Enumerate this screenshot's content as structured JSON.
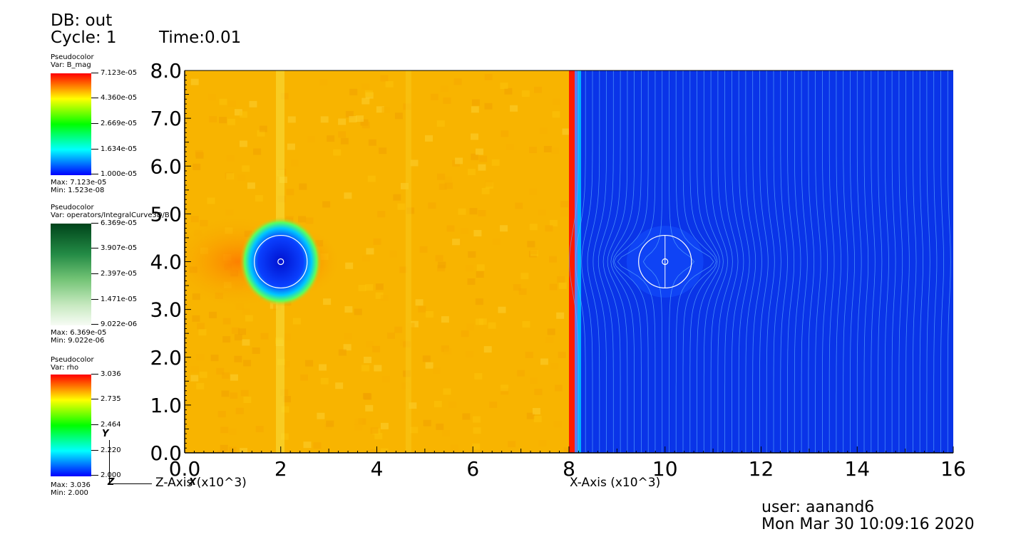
{
  "header": {
    "db_label": "DB: out",
    "cycle_label": "Cycle: 1",
    "time_label": "Time:0.01"
  },
  "legends": [
    {
      "plot": "Pseudocolor",
      "var": "Var: B_mag",
      "colormap": "hot",
      "ticks": [
        "7.123e-05",
        "4.360e-05",
        "2.669e-05",
        "1.634e-05",
        "1.000e-05"
      ],
      "max": "Max:  7.123e-05",
      "min": "Min:  1.523e-08"
    },
    {
      "plot": "Pseudocolor",
      "var": "Var: operators/IntegralCurve3D/B",
      "colormap": "greens",
      "ticks": [
        "6.369e-05",
        "3.907e-05",
        "2.397e-05",
        "1.471e-05",
        "9.022e-06"
      ],
      "max": "Max:  6.369e-05",
      "min": "Min:  9.022e-06"
    },
    {
      "plot": "Pseudocolor",
      "var": "Var: rho",
      "colormap": "hot",
      "ticks": [
        "3.036",
        "2.735",
        "2.464",
        "2.220",
        "2.000"
      ],
      "max": "Max:  3.036",
      "min": "Min:  2.000"
    }
  ],
  "triad": {
    "y": "Y",
    "z": "Z",
    "x": "X"
  },
  "footer": {
    "user": "user: aanand6",
    "date": "Mon Mar 30 10:09:16 2020"
  },
  "chart_data": {
    "type": "heatmap",
    "title": "",
    "xlabel": "X-Axis (x10^3)",
    "zlabel": "Z-Axis (x10^3)",
    "ylabel": "",
    "xlim": [
      0,
      16
    ],
    "ylim": [
      0,
      8
    ],
    "x_ticks": [
      "0.0",
      "2",
      "4",
      "6",
      "8",
      "10",
      "12",
      "14",
      "16"
    ],
    "y_ticks": [
      "0.0",
      "1.0",
      "2.0",
      "3.0",
      "4.0",
      "5.0",
      "6.0",
      "7.0",
      "8.0"
    ],
    "colors": {
      "left_field": "#f8b400",
      "right_field": "#0a34e8",
      "boundary": "#ff1a00",
      "boundary_cyan": "#00b0ff",
      "streamline": "#5fb0ff"
    },
    "regions": [
      {
        "name": "rho",
        "x_range": [
          0,
          8
        ],
        "value_level": "mid-high"
      },
      {
        "name": "B_mag",
        "x_range": [
          8,
          16
        ],
        "value_level": "low"
      }
    ],
    "obstacles": [
      {
        "center": [
          2,
          4
        ],
        "radius": 0.55
      },
      {
        "center": [
          10,
          4
        ],
        "radius": 0.55
      }
    ],
    "grid": false
  }
}
